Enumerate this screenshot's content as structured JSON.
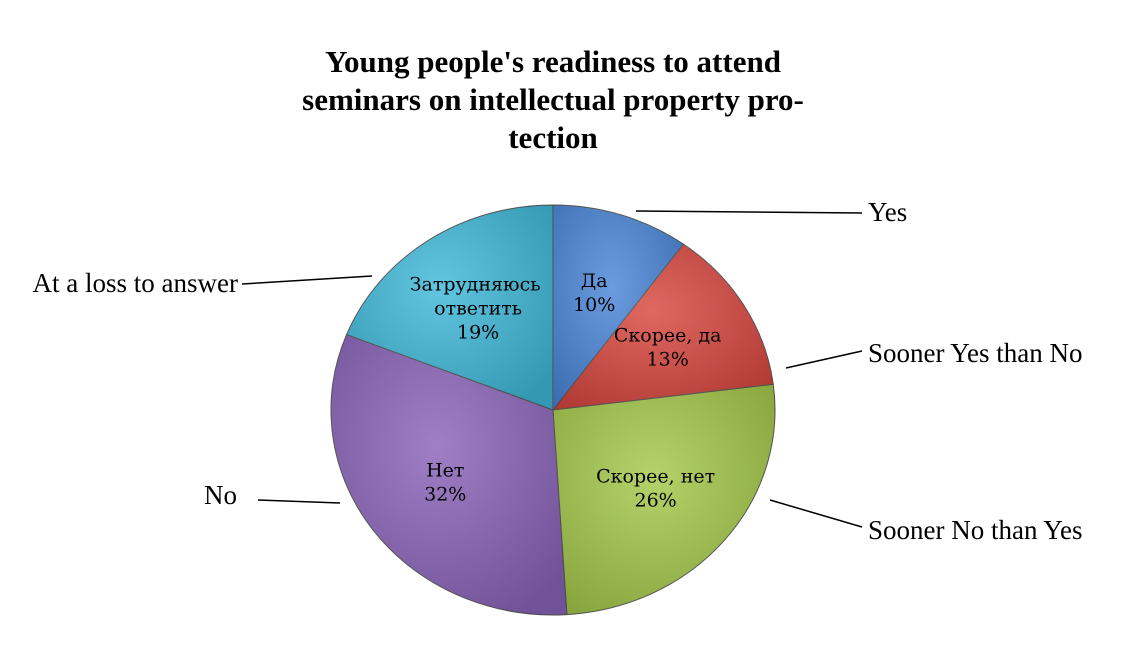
{
  "chart_data": {
    "type": "pie",
    "title_lines": [
      "Young people's readiness to attend",
      "seminars on intellectual property pro-",
      "tection"
    ],
    "categories": [
      "Да",
      "Скорее, да",
      "Скорее, нет",
      "Нет",
      "Затрудняюсь ответить"
    ],
    "values": [
      10,
      13,
      26,
      32,
      19
    ],
    "value_labels": [
      "10%",
      "13%",
      "26%",
      "32%",
      "19%"
    ],
    "callout_labels": [
      "Yes",
      "Sooner Yes than No",
      "Sooner No than Yes",
      "No",
      "At a loss to answer"
    ],
    "colors": [
      "#4a86d8",
      "#d9473f",
      "#a5c94a",
      "#8a63b8",
      "#3fb9d9"
    ]
  }
}
